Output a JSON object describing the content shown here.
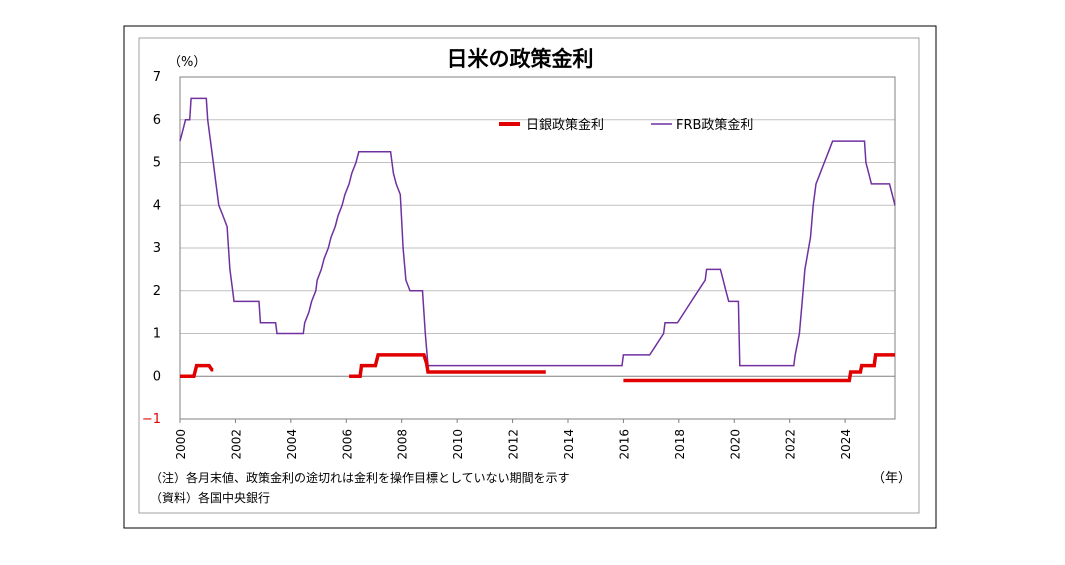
{
  "chart_data": {
    "type": "line",
    "title": "日米の政策金利",
    "ylabel": "（%）",
    "xlabel": "（年）",
    "ylim": [
      -1,
      7
    ],
    "xlim": [
      2000,
      2025.8
    ],
    "yticks": [
      "7",
      "6",
      "5",
      "4",
      "3",
      "2",
      "1",
      "0",
      "−1"
    ],
    "ytick_values": [
      7,
      6,
      5,
      4,
      3,
      2,
      1,
      0,
      -1
    ],
    "xticks": [
      "2000",
      "2002",
      "2004",
      "2006",
      "2008",
      "2010",
      "2012",
      "2014",
      "2016",
      "2018",
      "2020",
      "2022",
      "2024"
    ],
    "xtick_values": [
      2000,
      2002,
      2004,
      2006,
      2008,
      2010,
      2012,
      2014,
      2016,
      2018,
      2020,
      2022,
      2024
    ],
    "grid": "horizontal",
    "legend_position": "top-right",
    "series": [
      {
        "name": "日銀政策金利",
        "color": "#e00000",
        "segments": [
          [
            [
              2000.0,
              0.0
            ],
            [
              2000.5,
              0.0
            ],
            [
              2000.6,
              0.25
            ],
            [
              2001.05,
              0.25
            ],
            [
              2001.15,
              0.15
            ],
            [
              2001.2,
              0.15
            ]
          ],
          [
            [
              2006.1,
              0.0
            ],
            [
              2006.5,
              0.0
            ],
            [
              2006.55,
              0.25
            ],
            [
              2007.05,
              0.25
            ],
            [
              2007.15,
              0.5
            ],
            [
              2008.8,
              0.5
            ],
            [
              2008.9,
              0.3
            ],
            [
              2008.95,
              0.1
            ],
            [
              2013.2,
              0.1
            ]
          ],
          [
            [
              2016.0,
              -0.1
            ],
            [
              2024.15,
              -0.1
            ],
            [
              2024.2,
              0.1
            ],
            [
              2024.55,
              0.1
            ],
            [
              2024.6,
              0.25
            ],
            [
              2025.05,
              0.25
            ],
            [
              2025.1,
              0.5
            ],
            [
              2025.8,
              0.5
            ]
          ]
        ]
      },
      {
        "name": "FRB政策金利",
        "color": "#7030a0",
        "segments": [
          [
            [
              2000.0,
              5.5
            ],
            [
              2000.1,
              5.75
            ],
            [
              2000.2,
              6.0
            ],
            [
              2000.35,
              6.0
            ],
            [
              2000.4,
              6.5
            ],
            [
              2000.95,
              6.5
            ],
            [
              2001.0,
              6.0
            ],
            [
              2001.1,
              5.5
            ],
            [
              2001.2,
              5.0
            ],
            [
              2001.3,
              4.5
            ],
            [
              2001.4,
              4.0
            ],
            [
              2001.55,
              3.75
            ],
            [
              2001.7,
              3.5
            ],
            [
              2001.75,
              3.0
            ],
            [
              2001.8,
              2.5
            ],
            [
              2001.9,
              2.0
            ],
            [
              2001.95,
              1.75
            ],
            [
              2002.85,
              1.75
            ],
            [
              2002.9,
              1.25
            ],
            [
              2003.45,
              1.25
            ],
            [
              2003.5,
              1.0
            ],
            [
              2004.45,
              1.0
            ],
            [
              2004.5,
              1.25
            ],
            [
              2004.65,
              1.5
            ],
            [
              2004.75,
              1.75
            ],
            [
              2004.9,
              2.0
            ],
            [
              2004.95,
              2.25
            ],
            [
              2005.1,
              2.5
            ],
            [
              2005.2,
              2.75
            ],
            [
              2005.35,
              3.0
            ],
            [
              2005.45,
              3.25
            ],
            [
              2005.6,
              3.5
            ],
            [
              2005.7,
              3.75
            ],
            [
              2005.85,
              4.0
            ],
            [
              2005.95,
              4.25
            ],
            [
              2006.1,
              4.5
            ],
            [
              2006.2,
              4.75
            ],
            [
              2006.35,
              5.0
            ],
            [
              2006.45,
              5.25
            ],
            [
              2007.6,
              5.25
            ],
            [
              2007.7,
              4.75
            ],
            [
              2007.8,
              4.5
            ],
            [
              2007.95,
              4.25
            ],
            [
              2008.05,
              3.0
            ],
            [
              2008.15,
              2.25
            ],
            [
              2008.3,
              2.0
            ],
            [
              2008.75,
              2.0
            ],
            [
              2008.8,
              1.5
            ],
            [
              2008.85,
              1.0
            ],
            [
              2008.95,
              0.25
            ],
            [
              2015.95,
              0.25
            ],
            [
              2016.0,
              0.5
            ],
            [
              2016.95,
              0.5
            ],
            [
              2017.2,
              0.75
            ],
            [
              2017.45,
              1.0
            ],
            [
              2017.5,
              1.25
            ],
            [
              2017.95,
              1.25
            ],
            [
              2018.2,
              1.5
            ],
            [
              2018.45,
              1.75
            ],
            [
              2018.7,
              2.0
            ],
            [
              2018.95,
              2.25
            ],
            [
              2019.0,
              2.5
            ],
            [
              2019.5,
              2.5
            ],
            [
              2019.6,
              2.25
            ],
            [
              2019.7,
              2.0
            ],
            [
              2019.8,
              1.75
            ],
            [
              2020.15,
              1.75
            ],
            [
              2020.2,
              0.25
            ],
            [
              2022.15,
              0.25
            ],
            [
              2022.2,
              0.5
            ],
            [
              2022.35,
              1.0
            ],
            [
              2022.45,
              1.75
            ],
            [
              2022.55,
              2.5
            ],
            [
              2022.75,
              3.25
            ],
            [
              2022.85,
              4.0
            ],
            [
              2022.95,
              4.5
            ],
            [
              2023.1,
              4.75
            ],
            [
              2023.25,
              5.0
            ],
            [
              2023.4,
              5.25
            ],
            [
              2023.55,
              5.5
            ],
            [
              2024.7,
              5.5
            ],
            [
              2024.75,
              5.0
            ],
            [
              2024.85,
              4.75
            ],
            [
              2024.95,
              4.5
            ],
            [
              2025.6,
              4.5
            ],
            [
              2025.8,
              4.0
            ]
          ]
        ]
      }
    ],
    "notes": [
      "（注）各月末値、政策金利の途切れは金利を操作目標としていない期間を示す",
      "（資料）各国中央銀行"
    ],
    "colors": {
      "border": "#000000",
      "plot_border": "#808080",
      "grid": "#c0c0c0",
      "zero_line": "#808080",
      "negative_tick": "#e00000"
    }
  }
}
